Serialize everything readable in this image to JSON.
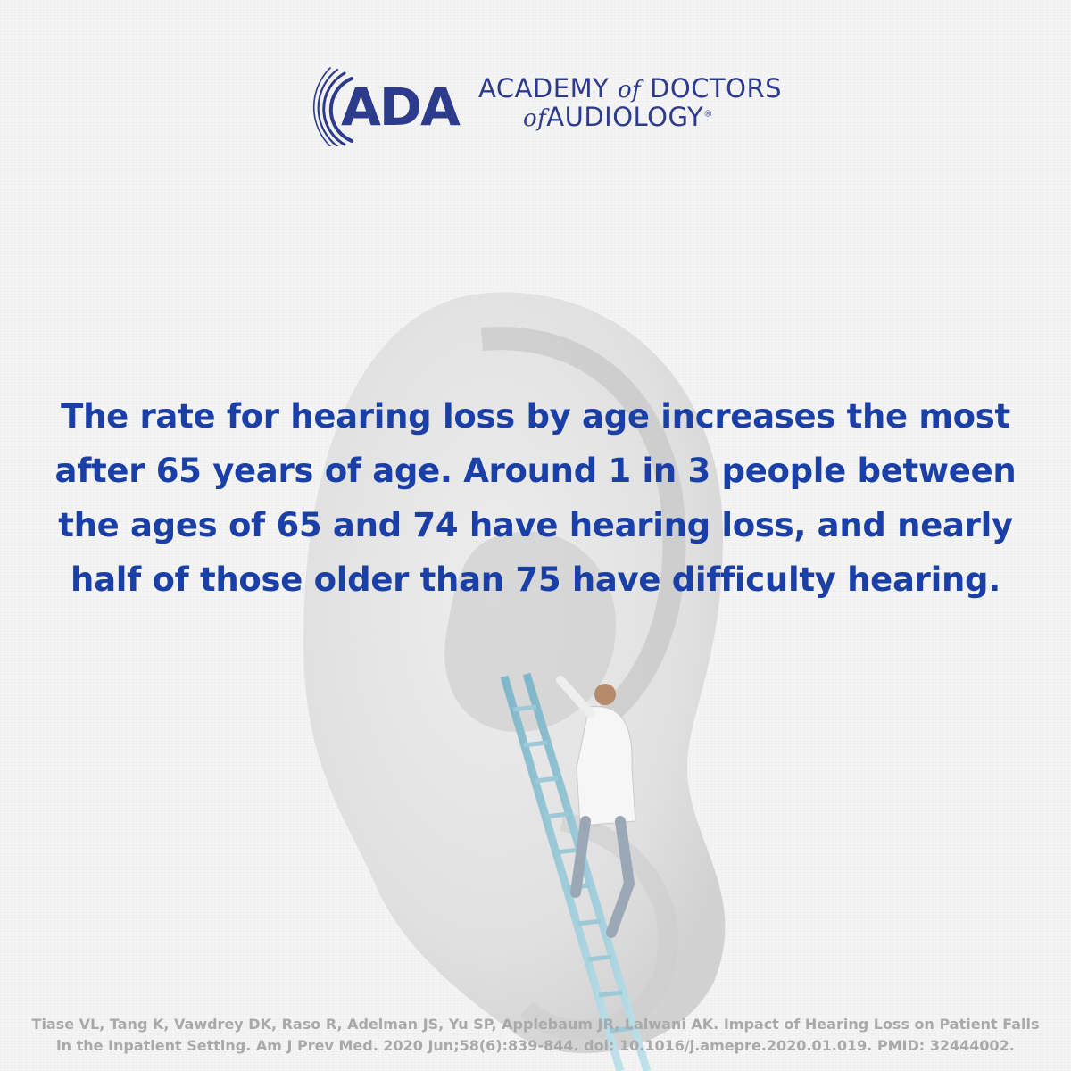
{
  "logo": {
    "abbr": "ADA",
    "line1_a": "ACADEMY",
    "line1_of": "of",
    "line1_b": "DOCTORS",
    "line2_of": "of",
    "line2_b": "AUDIOLOGY",
    "registered": "®"
  },
  "headline": "The rate for hearing loss by age increases the most after 65 years of age. Around 1 in 3 people between the ages of 65 and 74 have hearing loss, and nearly half of those older than 75 have difficulty hearing.",
  "citation": "Tiase VL, Tang K, Vawdrey DK, Raso R, Adelman JS, Yu SP, Applebaum JR, Lalwani AK. Impact of Hearing Loss on Patient Falls in the Inpatient Setting. Am J Prev Med. 2020 Jun;58(6):839-844. doi: 10.1016/j.amepre.2020.01.019. PMID: 32444002.",
  "colors": {
    "brand": "#2d3b8c",
    "headline": "#1a3fa6",
    "citation": "#a9a9a9",
    "background": "#f4f4f4"
  },
  "icons": [
    "ada-sound-wave-icon",
    "ear-illustration",
    "ladder-doctor-illustration"
  ]
}
